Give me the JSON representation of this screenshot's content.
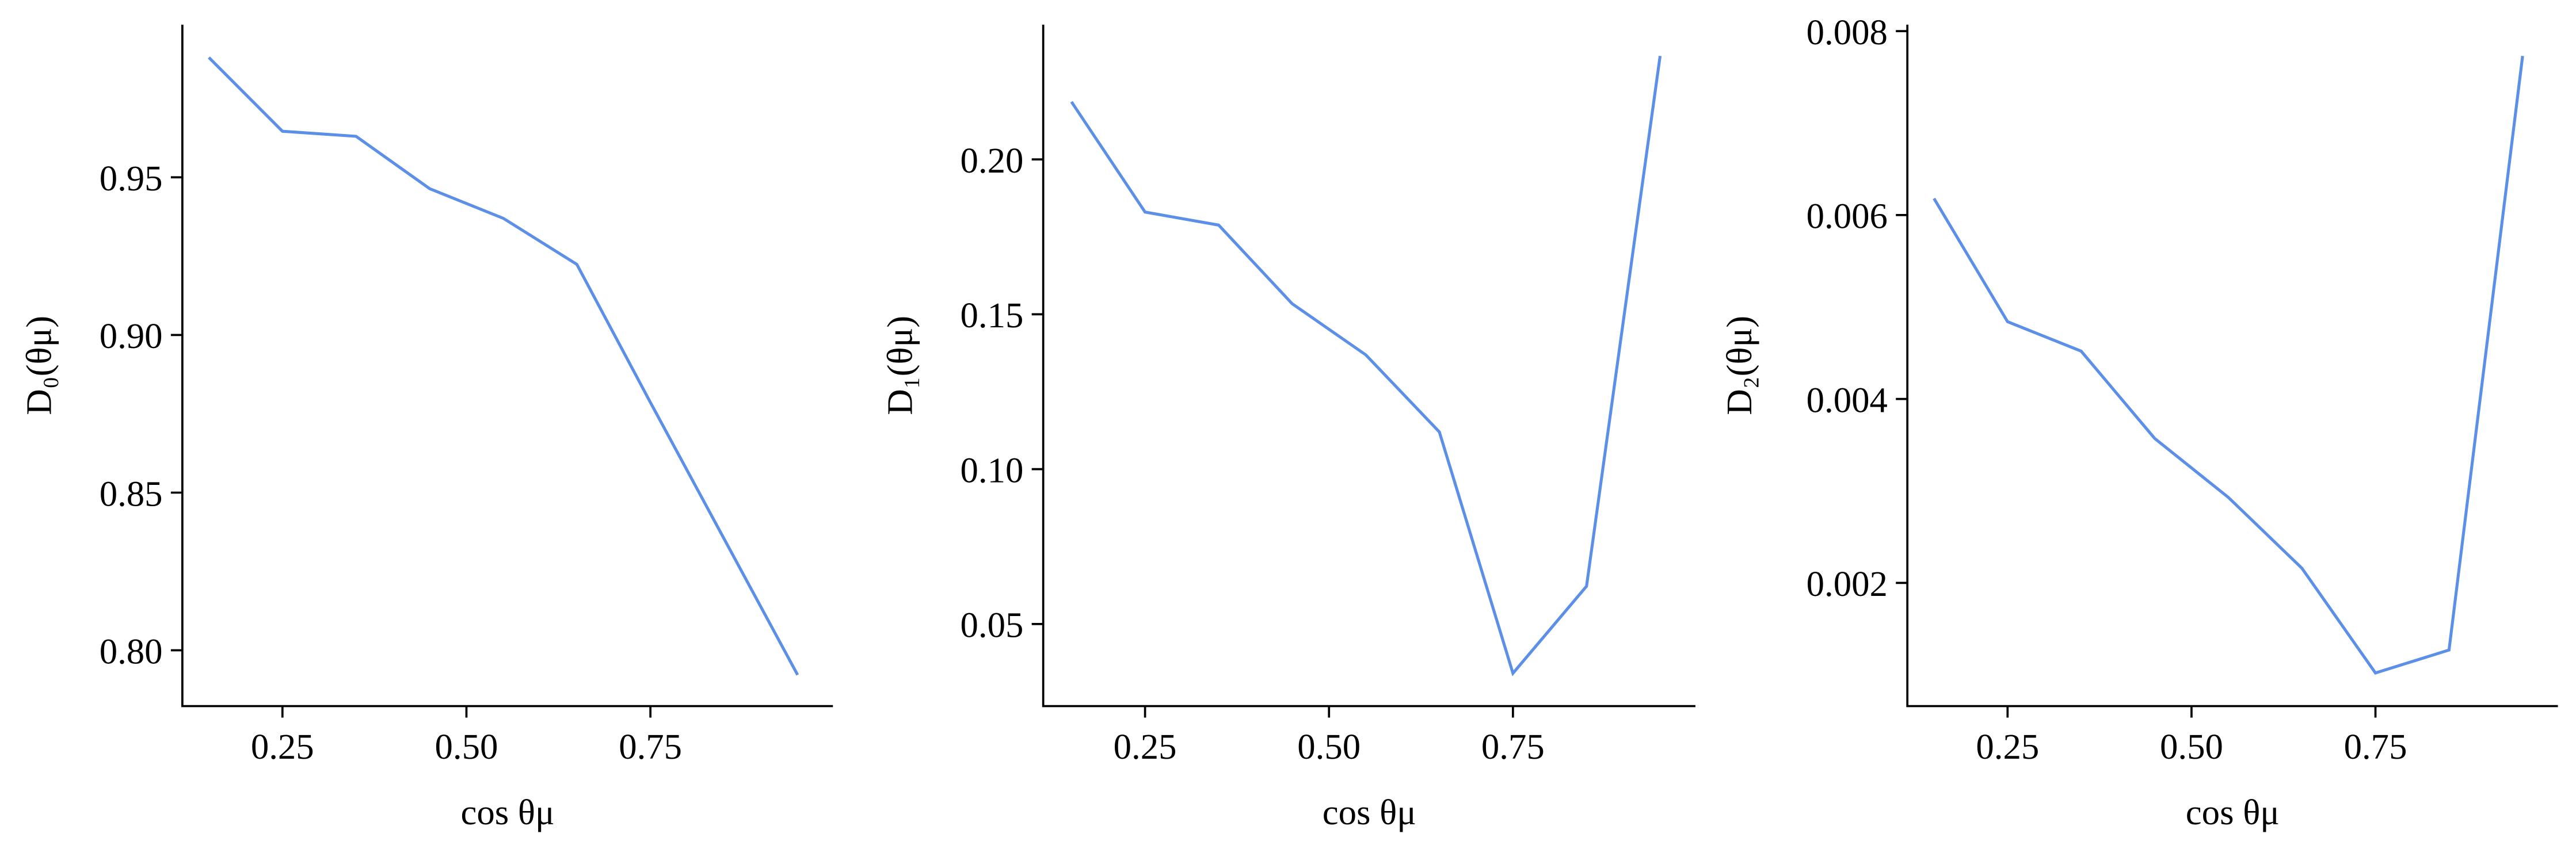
{
  "chart_data": [
    {
      "type": "line",
      "xlabel": "cos θμ",
      "ylabel": "D₀(θμ)",
      "x": [
        0.15,
        0.25,
        0.35,
        0.45,
        0.55,
        0.65,
        0.75,
        0.85,
        0.95
      ],
      "series": [
        {
          "color": "#5b8fe8",
          "values": [
            0.988,
            0.9646,
            0.963,
            0.9464,
            0.937,
            0.9224,
            0.8786,
            0.8354,
            0.7922
          ]
        }
      ],
      "xlim": [
        0.114,
        0.998
      ],
      "xticks": [
        0.25,
        {
          "value": 0.5,
          "label": "0.50"
        },
        0.75
      ],
      "ylim": [
        0.7823,
        0.9984
      ],
      "yticks": [
        {
          "value": 0.8,
          "label": "0.80"
        },
        0.85,
        {
          "value": 0.9,
          "label": "0.90"
        },
        0.95
      ]
    },
    {
      "type": "line",
      "xlabel": "cos θμ",
      "ylabel": "D₁(θμ)",
      "x": [
        0.15,
        0.25,
        0.35,
        0.45,
        0.55,
        0.65,
        0.75,
        0.85,
        0.95
      ],
      "series": [
        {
          "color": "#5b8fe8",
          "values": [
            0.2186,
            0.183,
            0.1788,
            0.1534,
            0.1369,
            0.112,
            0.0341,
            0.0622,
            0.2334
          ]
        }
      ],
      "xlim": [
        0.1116,
        0.998
      ],
      "xticks": [
        0.25,
        {
          "value": 0.5,
          "label": "0.50"
        },
        0.75
      ],
      "ylim": [
        0.0235,
        0.2435
      ],
      "yticks": [
        0.05,
        {
          "value": 0.1,
          "label": "0.10"
        },
        0.15,
        {
          "value": 0.2,
          "label": "0.20"
        }
      ]
    },
    {
      "type": "line",
      "xlabel": "cos θμ",
      "ylabel": "D₂(θμ)",
      "x": [
        0.15,
        0.25,
        0.35,
        0.45,
        0.55,
        0.65,
        0.75,
        0.85,
        0.95
      ],
      "series": [
        {
          "color": "#5b8fe8",
          "values": [
            0.00618,
            0.00484,
            0.00452,
            0.00357,
            0.00293,
            0.00216,
            0.00102,
            0.00127,
            0.00773
          ]
        }
      ],
      "xlim": [
        0.1138,
        0.998
      ],
      "xticks": [
        0.25,
        {
          "value": 0.5,
          "label": "0.50"
        },
        0.75
      ],
      "ylim": [
        0.00066,
        0.00807
      ],
      "yticks": [
        0.002,
        0.004,
        0.006,
        0.008
      ]
    }
  ]
}
